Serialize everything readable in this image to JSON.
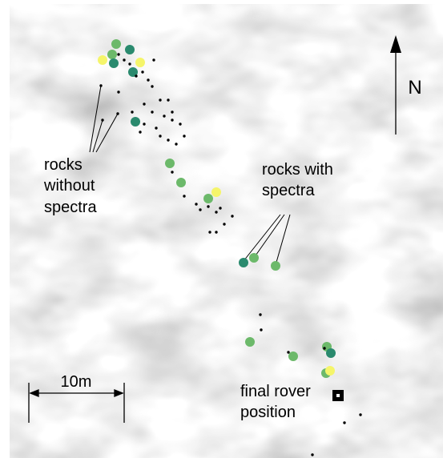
{
  "map": {
    "north_label": "N",
    "scale_label": "10m",
    "rocks_without_spectra": [
      "rocks",
      "without",
      "spectra"
    ],
    "rocks_with_spectra": [
      "rocks with",
      "spectra"
    ],
    "final_rover_position": [
      "final rover",
      "position"
    ]
  }
}
